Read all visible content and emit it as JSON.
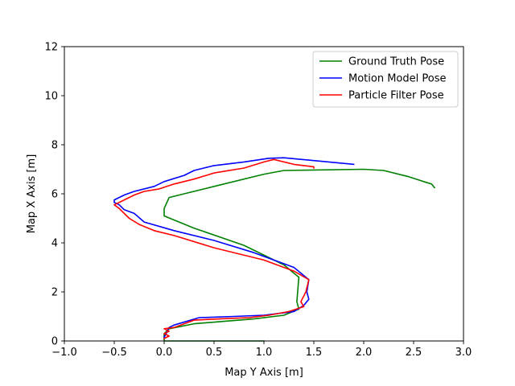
{
  "chart_data": {
    "type": "line",
    "title": "",
    "xlabel": "Map Y Axis [m]",
    "ylabel": "Map X Axis [m]",
    "xlim": [
      -1.0,
      3.0
    ],
    "ylim": [
      0,
      12
    ],
    "xticks": [
      "−1.0",
      "−0.5",
      "0.0",
      "0.5",
      "1.0",
      "1.5",
      "2.0",
      "2.5",
      "3.0"
    ],
    "xtick_values": [
      -1.0,
      -0.5,
      0.0,
      0.5,
      1.0,
      1.5,
      2.0,
      2.5,
      3.0
    ],
    "yticks": [
      "0",
      "2",
      "4",
      "6",
      "8",
      "10",
      "12"
    ],
    "ytick_values": [
      0,
      2,
      4,
      6,
      8,
      10,
      12
    ],
    "grid": false,
    "legend_position": "top-right",
    "series": [
      {
        "name": "Ground Truth Pose",
        "color": "#008000",
        "x": [
          1.0,
          0.0,
          0.0,
          0.05,
          0.3,
          0.6,
          0.9,
          1.2,
          1.35,
          1.33,
          1.35,
          1.2,
          0.8,
          0.3,
          0.0,
          0.0,
          0.05,
          0.2,
          0.5,
          1.0,
          1.2,
          1.5,
          2.0,
          2.2,
          2.45,
          2.6,
          2.68,
          2.71
        ],
        "y": [
          0.0,
          0.0,
          0.3,
          0.5,
          0.7,
          0.8,
          0.9,
          1.05,
          1.3,
          1.6,
          2.6,
          3.1,
          3.9,
          4.6,
          5.1,
          5.4,
          5.85,
          6.0,
          6.3,
          6.8,
          6.95,
          6.97,
          7.0,
          6.95,
          6.7,
          6.5,
          6.4,
          6.25
        ]
      },
      {
        "name": "Motion Model Pose",
        "color": "#0000ff",
        "x": [
          0.0,
          0.02,
          0.05,
          0.1,
          0.35,
          0.7,
          1.0,
          1.3,
          1.4,
          1.45,
          1.43,
          1.45,
          1.3,
          0.9,
          0.5,
          0.1,
          -0.2,
          -0.3,
          -0.4,
          -0.45,
          -0.5,
          -0.5,
          -0.4,
          -0.3,
          -0.1,
          0.0,
          0.2,
          0.3,
          0.5,
          0.8,
          1.05,
          1.2,
          1.9
        ],
        "y": [
          0.15,
          0.3,
          0.55,
          0.65,
          0.95,
          1.0,
          1.05,
          1.2,
          1.45,
          1.7,
          2.0,
          2.5,
          3.0,
          3.6,
          4.1,
          4.5,
          4.85,
          5.2,
          5.35,
          5.55,
          5.65,
          5.75,
          5.95,
          6.1,
          6.3,
          6.5,
          6.75,
          6.95,
          7.15,
          7.3,
          7.45,
          7.47,
          7.2
        ]
      },
      {
        "name": "Particle Filter Pose",
        "color": "#ff0000",
        "x": [
          0.0,
          0.05,
          0.0,
          0.05,
          0.0,
          0.1,
          0.3,
          0.55,
          0.85,
          1.05,
          1.25,
          1.4,
          1.37,
          1.42,
          1.45,
          1.3,
          1.0,
          0.5,
          0.1,
          -0.1,
          -0.25,
          -0.35,
          -0.4,
          -0.45,
          -0.5,
          -0.4,
          -0.3,
          -0.2,
          -0.05,
          0.1,
          0.3,
          0.5,
          0.8,
          1.0,
          1.1,
          1.3,
          1.5,
          1.5
        ],
        "y": [
          0.1,
          0.2,
          0.3,
          0.4,
          0.5,
          0.55,
          0.85,
          0.9,
          0.95,
          1.05,
          1.2,
          1.4,
          1.6,
          2.0,
          2.5,
          2.85,
          3.3,
          3.8,
          4.3,
          4.5,
          4.75,
          5.0,
          5.2,
          5.4,
          5.55,
          5.75,
          5.95,
          6.1,
          6.2,
          6.4,
          6.6,
          6.85,
          7.05,
          7.3,
          7.4,
          7.2,
          7.1,
          7.05
        ]
      }
    ]
  }
}
